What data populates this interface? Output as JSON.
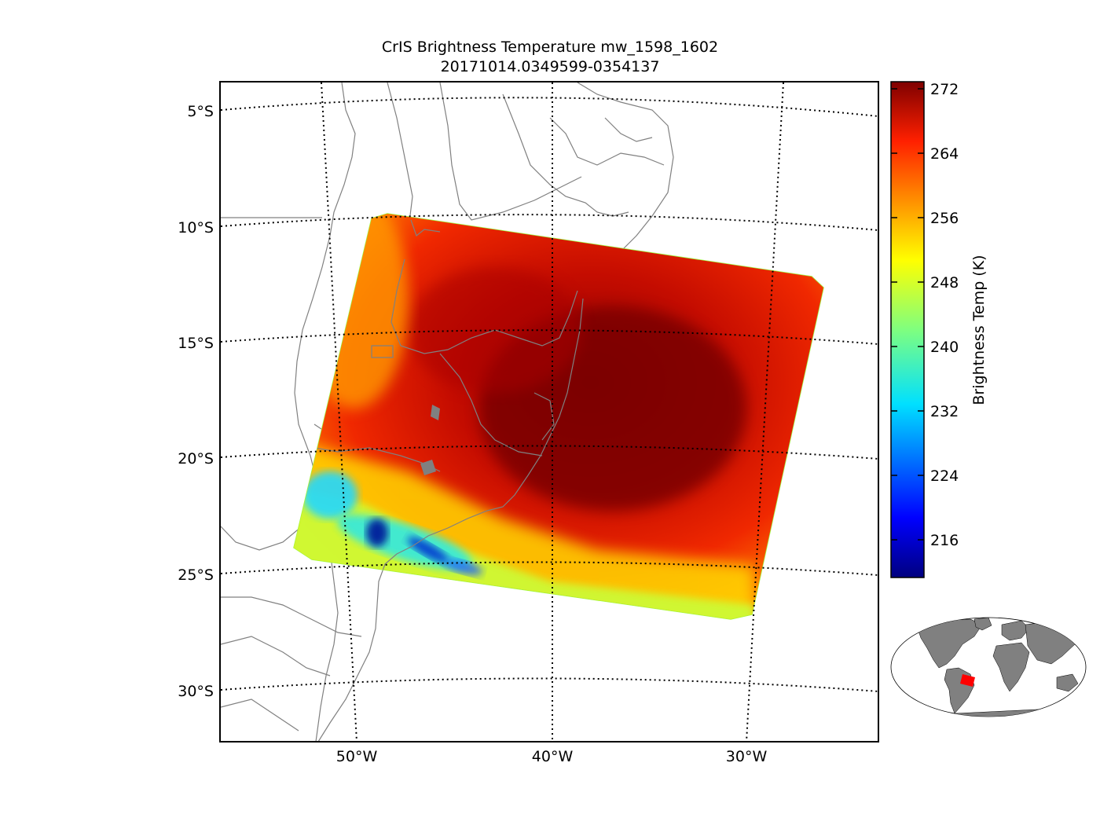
{
  "title": {
    "line1": "CrIS Brightness Temperature mw_1598_1602",
    "line2": "20171014.0349599-0354137"
  },
  "map": {
    "lat_labels": [
      "5°S",
      "10°S",
      "15°S",
      "20°S",
      "25°S",
      "30°S"
    ],
    "lon_labels": [
      "50°W",
      "40°W",
      "30°W"
    ],
    "grid_style": "dotted",
    "coastline_color": "#808080",
    "swath_hot_center": "#8b0000",
    "swath_cold_edge": "#1e90ff"
  },
  "colorbar": {
    "label": "Brightness Temp (K)",
    "ticks": [
      "272",
      "264",
      "256",
      "248",
      "240",
      "232",
      "224",
      "216"
    ],
    "colormap": "jet",
    "range": [
      209,
      273
    ]
  },
  "inset": {
    "land_color": "#808080",
    "highlight_color": "#ff0000"
  }
}
